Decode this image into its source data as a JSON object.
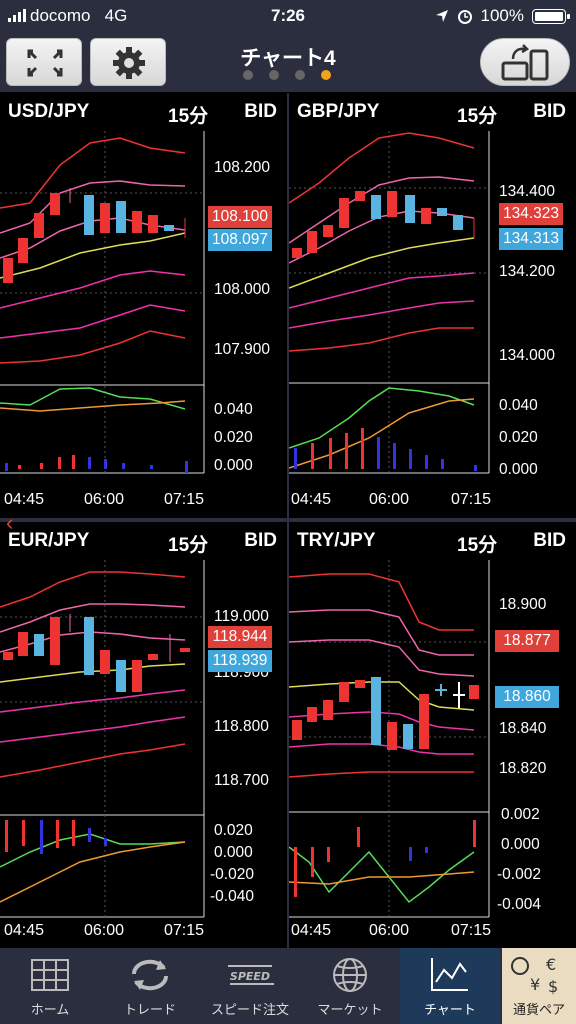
{
  "status_bar": {
    "carrier": "docomo",
    "network": "4G",
    "time": "7:26",
    "battery": "100%"
  },
  "header": {
    "title": "チャート4",
    "page_dots": 4,
    "active_dot": 3
  },
  "panels": [
    {
      "symbol": "USD/JPY",
      "timeframe": "15分",
      "price_type": "BID",
      "price_labels": [
        "108.200",
        "108.000",
        "107.900"
      ],
      "ask": "108.100",
      "bid": "108.097",
      "indicator_labels": [
        "0.040",
        "0.020",
        "0.000"
      ],
      "times": [
        "04:45",
        "06:00",
        "07:15"
      ]
    },
    {
      "symbol": "GBP/JPY",
      "timeframe": "15分",
      "price_type": "BID",
      "price_labels": [
        "134.400",
        "134.200",
        "134.000"
      ],
      "ask": "134.323",
      "bid": "134.313",
      "indicator_labels": [
        "0.040",
        "0.020",
        "0.000"
      ],
      "times": [
        "04:45",
        "06:00",
        "07:15"
      ]
    },
    {
      "symbol": "EUR/JPY",
      "timeframe": "15分",
      "price_type": "BID",
      "price_labels": [
        "119.000",
        "118.900",
        "118.800",
        "118.700"
      ],
      "ask": "118.944",
      "bid": "118.939",
      "indicator_labels": [
        "0.020",
        "0.000",
        "-0.020",
        "-0.040"
      ],
      "times": [
        "04:45",
        "06:00",
        "07:15"
      ]
    },
    {
      "symbol": "TRY/JPY",
      "timeframe": "15分",
      "price_type": "BID",
      "price_labels": [
        "18.900",
        "18.840",
        "18.820"
      ],
      "ask": "18.877",
      "bid": "18.860",
      "indicator_labels": [
        "0.002",
        "0.000",
        "-0.002",
        "-0.004"
      ],
      "times": [
        "04:45",
        "06:00",
        "07:15"
      ]
    }
  ],
  "tabs": [
    {
      "label": "ホーム",
      "icon": "grid-icon"
    },
    {
      "label": "トレード",
      "icon": "refresh-icon"
    },
    {
      "label": "スピード注文",
      "icon": "speed-icon"
    },
    {
      "label": "マーケット",
      "icon": "globe-icon"
    },
    {
      "label": "チャート",
      "icon": "chart-icon",
      "active": true
    },
    {
      "label": "通貨ペア",
      "icon": "currency-pair-icon"
    }
  ],
  "colors": {
    "ask": "#e0403a",
    "bid": "#3fa7db",
    "accent": "#f2a31b",
    "bar": "#2a2e3e"
  }
}
